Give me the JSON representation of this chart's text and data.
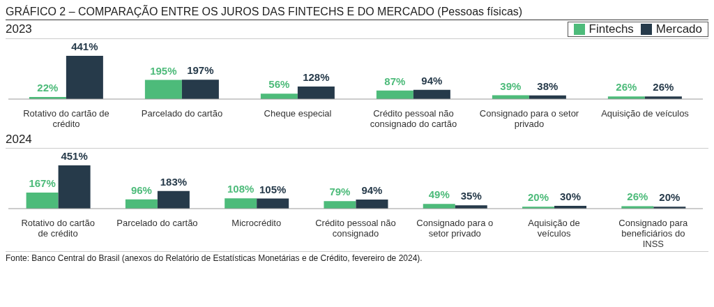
{
  "chart_data": [
    {
      "type": "bar",
      "title": "GRÁFICO 2 – COMPARAÇÃO ENTRE OS JUROS DAS FINTECHS E DO MERCADO (Pessoas físicas)",
      "subtitle": "2023",
      "legend": "top right",
      "categories": [
        "Rotativo do cartão de crédito",
        "Parcelado do cartão",
        "Cheque especial",
        "Crédito pessoal não consignado do cartão",
        "Consignado para o setor privado",
        "Aquisição de veículos"
      ],
      "series": [
        {
          "name": "Fintechs",
          "color": "#4dbb7a",
          "values": [
            22,
            195,
            56,
            87,
            39,
            26
          ],
          "value_labels": [
            "22%",
            "195%",
            "56%",
            "87%",
            "39%",
            "26%"
          ]
        },
        {
          "name": "Mercado",
          "color": "#263a4a",
          "values": [
            441,
            197,
            128,
            94,
            38,
            26
          ],
          "value_labels": [
            "441%",
            "197%",
            "128%",
            "94%",
            "38%",
            "26%"
          ]
        }
      ]
    },
    {
      "type": "bar",
      "title": "2024",
      "annotations": [
        "Fonte: Banco Central do Brasil (anexos do Relatório de Estatísticas Monetárias e de Crédito, fevereiro de 2024)."
      ],
      "categories": [
        "Rotativo do cartão de crédito",
        "Parcelado do cartão",
        "Microcrédito",
        "Crédito pessoal não consignado",
        "Consignado para o setor privado",
        "Aquisição de veículos",
        "Consignado para beneficiários do INSS"
      ],
      "series": [
        {
          "color": "#4dbb7a",
          "values": [
            167,
            96,
            108,
            79,
            49,
            20,
            26
          ],
          "value_labels": [
            "167%",
            "96%",
            "108%",
            "79%",
            "49%",
            "20%",
            "26%"
          ]
        },
        {
          "color": "#263a4a",
          "values": [
            451,
            183,
            105,
            94,
            35,
            30,
            20
          ],
          "value_labels": [
            "451%",
            "183%",
            "105%",
            "94%",
            "35%",
            "30%",
            "20%"
          ]
        }
      ]
    }
  ]
}
